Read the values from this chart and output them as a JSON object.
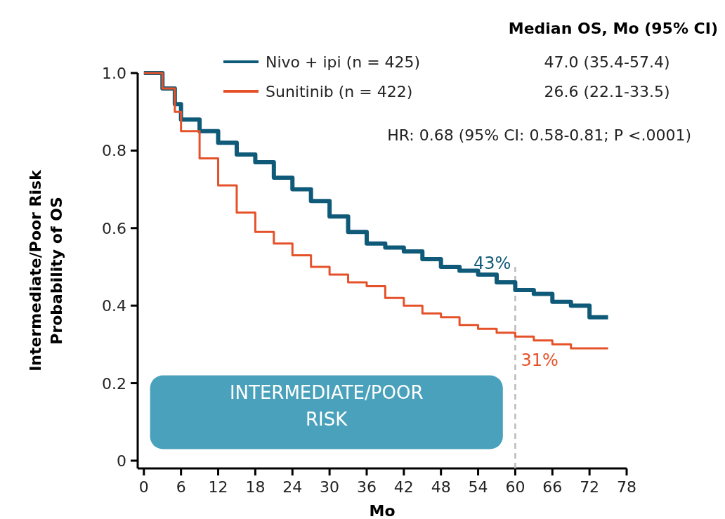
{
  "chart_data": {
    "type": "step",
    "xlabel": "Mo",
    "ylabel": "Intermediate/Poor Risk\nProbability of OS",
    "xlim": [
      -1,
      78
    ],
    "xticks": [
      0,
      6,
      12,
      18,
      24,
      30,
      36,
      42,
      48,
      54,
      60,
      66,
      72,
      78
    ],
    "ylim": [
      -0.02,
      1.0
    ],
    "yticks": [
      {
        "value": 0,
        "label": "0"
      },
      0.2,
      0.4,
      0.6,
      0.8,
      {
        "value": 1,
        "label": "1.0"
      }
    ],
    "legend": "top",
    "line_style": "solid",
    "series": [
      {
        "name": "Nivo + ipi (n = 425)",
        "color": "#0f5a78",
        "x": [
          0,
          3,
          5,
          6,
          9,
          12,
          15,
          18,
          21,
          24,
          27,
          30,
          33,
          36,
          39,
          42,
          45,
          48,
          51,
          54,
          57,
          60,
          63,
          66,
          69,
          72,
          75
        ],
        "values": [
          1.0,
          0.96,
          0.92,
          0.88,
          0.85,
          0.82,
          0.79,
          0.77,
          0.73,
          0.7,
          0.67,
          0.63,
          0.59,
          0.56,
          0.55,
          0.54,
          0.52,
          0.5,
          0.49,
          0.48,
          0.46,
          0.44,
          0.43,
          0.41,
          0.4,
          0.37,
          0.37
        ]
      },
      {
        "name": "Sunitinib (n = 422)",
        "color": "#e5522a",
        "x": [
          0,
          3,
          5,
          6,
          9,
          12,
          15,
          18,
          21,
          24,
          27,
          30,
          33,
          36,
          39,
          42,
          45,
          48,
          51,
          54,
          57,
          60,
          63,
          66,
          69,
          72,
          75
        ],
        "values": [
          1.0,
          0.96,
          0.9,
          0.85,
          0.78,
          0.71,
          0.64,
          0.59,
          0.56,
          0.53,
          0.5,
          0.48,
          0.46,
          0.45,
          0.42,
          0.4,
          0.38,
          0.37,
          0.35,
          0.34,
          0.33,
          0.32,
          0.31,
          0.3,
          0.29,
          0.29,
          0.29
        ]
      }
    ],
    "ref_lines": [
      {
        "axis": "x",
        "value": 60,
        "color": "#bbbbbb",
        "line_style": "dashed"
      }
    ],
    "annotations": [
      {
        "text": "43%",
        "x": 60,
        "y": 0.44
      },
      {
        "text": "31%",
        "x": 60,
        "y": 0.32
      },
      "Median OS, Mo (95% CI)",
      "47.0 (35.4-57.4)",
      "26.6 (22.1-33.5)",
      "HR: 0.68 (95% CI: 0.58-0.81; P <.0001)",
      "INTERMEDIATE/POOR RISK"
    ]
  }
}
